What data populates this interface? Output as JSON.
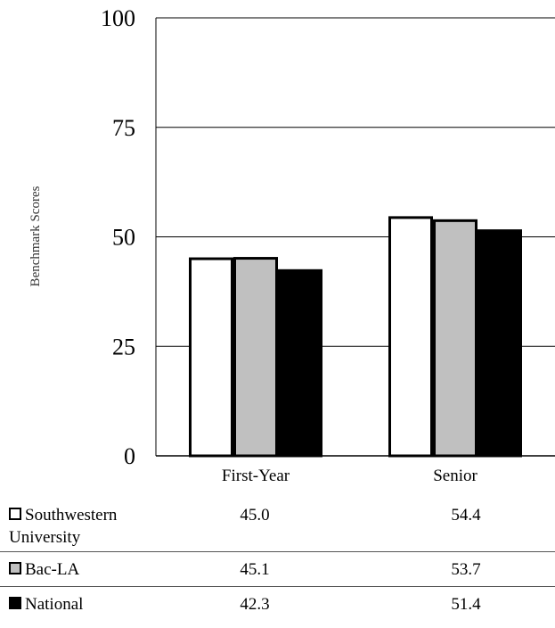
{
  "chart_data": {
    "type": "bar",
    "categories": [
      "First-Year",
      "Senior"
    ],
    "series": [
      {
        "name": "Southwestern University",
        "values": [
          45.0,
          54.4
        ],
        "color": "#ffffff"
      },
      {
        "name": "Bac-LA",
        "values": [
          45.1,
          53.7
        ],
        "color": "#c0c0c0"
      },
      {
        "name": "National",
        "values": [
          42.3,
          51.4
        ],
        "color": "#000000"
      }
    ],
    "ylabel": "Benchmark Scores",
    "ylim": [
      0,
      100
    ],
    "yticks": [
      "0",
      "25",
      "50",
      "75",
      "100"
    ],
    "grid": true,
    "legend": "table-below"
  },
  "table": {
    "rows": [
      {
        "label": "Southwestern University",
        "v1": "45.0",
        "v2": "54.4"
      },
      {
        "label": "Bac-LA",
        "v1": "45.1",
        "v2": "53.7"
      },
      {
        "label": "National",
        "v1": "42.3",
        "v2": "51.4"
      }
    ]
  }
}
